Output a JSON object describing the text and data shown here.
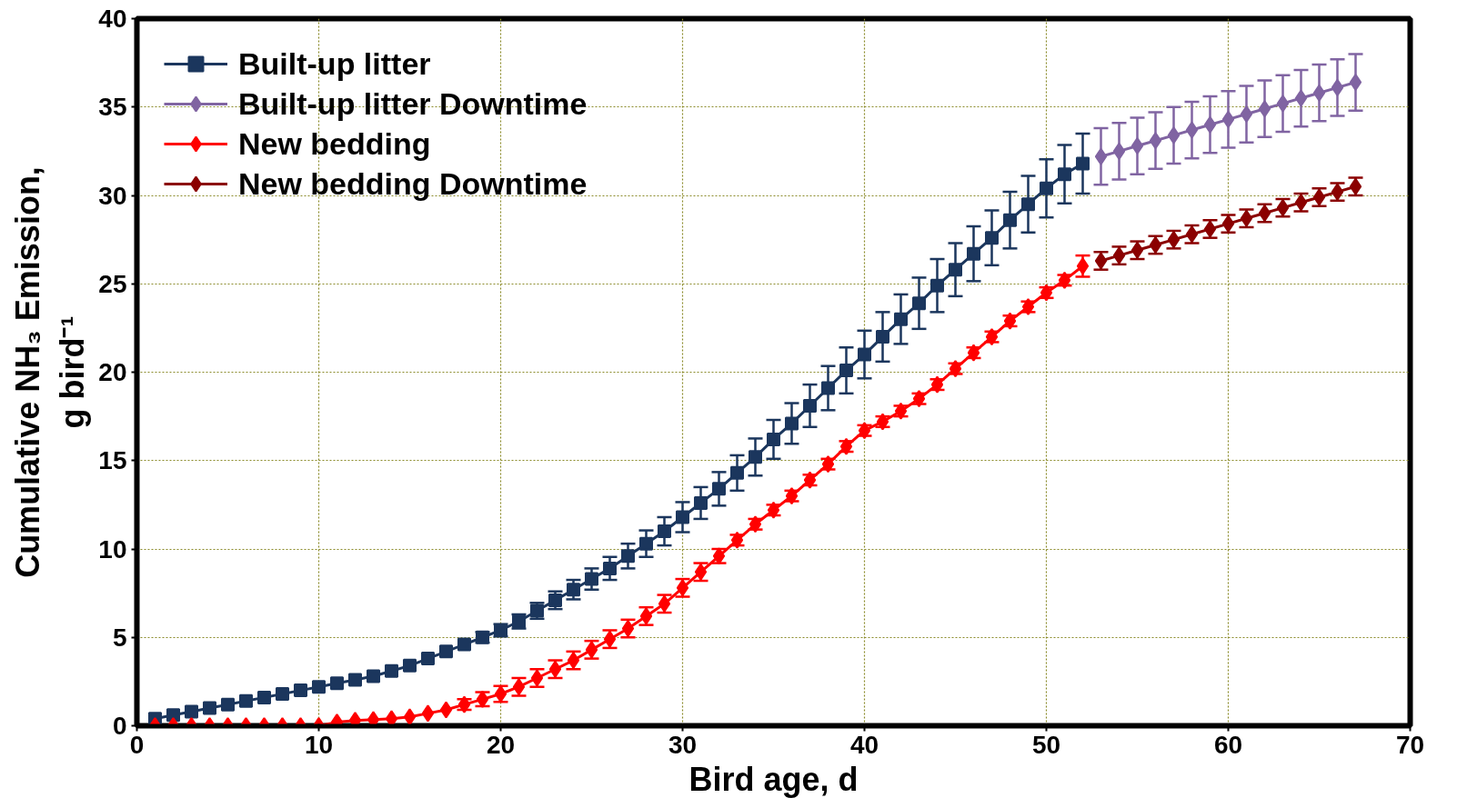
{
  "chart_data": {
    "type": "line",
    "xlabel": "Bird age, d",
    "ylabel": "Cumulative NH₃ Emission,\ng bird⁻¹",
    "xlim": [
      0,
      70
    ],
    "xticks": [
      0,
      10,
      20,
      30,
      40,
      50,
      60,
      70
    ],
    "ylim": [
      0,
      40
    ],
    "yticks": [
      0,
      5,
      10,
      15,
      20,
      25,
      30,
      35,
      40
    ],
    "grid": true,
    "legend": "top left",
    "line_style": "solid",
    "series": [
      {
        "name": "Built-up litter",
        "color": "#1b365d",
        "marker": "square",
        "x": [
          1,
          2,
          3,
          4,
          5,
          6,
          7,
          8,
          9,
          10,
          11,
          12,
          13,
          14,
          15,
          16,
          17,
          18,
          19,
          20,
          21,
          22,
          23,
          24,
          25,
          26,
          27,
          28,
          29,
          30,
          31,
          32,
          33,
          34,
          35,
          36,
          37,
          38,
          39,
          40,
          41,
          42,
          43,
          44,
          45,
          46,
          47,
          48,
          49,
          50,
          51,
          52
        ],
        "values": [
          0.4,
          0.6,
          0.8,
          1.0,
          1.2,
          1.4,
          1.6,
          1.8,
          2.0,
          2.2,
          2.4,
          2.6,
          2.8,
          3.1,
          3.4,
          3.8,
          4.2,
          4.6,
          5.0,
          5.4,
          5.9,
          6.5,
          7.1,
          7.7,
          8.3,
          8.9,
          9.6,
          10.3,
          11.0,
          11.8,
          12.6,
          13.4,
          14.3,
          15.2,
          16.2,
          17.1,
          18.1,
          19.1,
          20.1,
          21.0,
          22.0,
          23.0,
          23.9,
          24.9,
          25.8,
          26.7,
          27.6,
          28.6,
          29.5,
          30.4,
          31.2,
          31.8
        ],
        "errors": [
          null,
          null,
          null,
          null,
          null,
          null,
          null,
          null,
          null,
          null,
          null,
          null,
          null,
          null,
          null,
          null,
          null,
          null,
          0.3,
          0.35,
          0.4,
          0.45,
          0.5,
          0.55,
          0.6,
          0.65,
          0.7,
          0.75,
          0.8,
          0.85,
          0.9,
          0.95,
          1.0,
          1.05,
          1.1,
          1.15,
          1.2,
          1.25,
          1.3,
          1.35,
          1.4,
          1.4,
          1.45,
          1.5,
          1.5,
          1.55,
          1.55,
          1.6,
          1.6,
          1.65,
          1.65,
          1.7
        ]
      },
      {
        "name": "Built-up litter Downtime",
        "color": "#8064a2",
        "marker": "diamond",
        "x": [
          53,
          54,
          55,
          56,
          57,
          58,
          59,
          60,
          61,
          62,
          63,
          64,
          65,
          66,
          67
        ],
        "values": [
          32.2,
          32.5,
          32.8,
          33.1,
          33.4,
          33.7,
          34.0,
          34.3,
          34.6,
          34.9,
          35.2,
          35.5,
          35.8,
          36.1,
          36.4
        ],
        "errors": [
          1.6,
          1.6,
          1.6,
          1.6,
          1.6,
          1.6,
          1.6,
          1.6,
          1.6,
          1.6,
          1.6,
          1.6,
          1.6,
          1.6,
          1.6
        ]
      },
      {
        "name": "New bedding",
        "color": "#ff0000",
        "marker": "diamond",
        "x": [
          1,
          2,
          3,
          4,
          5,
          6,
          7,
          8,
          9,
          10,
          11,
          12,
          13,
          14,
          15,
          16,
          17,
          18,
          19,
          20,
          21,
          22,
          23,
          24,
          25,
          26,
          27,
          28,
          29,
          30,
          31,
          32,
          33,
          34,
          35,
          36,
          37,
          38,
          39,
          40,
          41,
          42,
          43,
          44,
          45,
          46,
          47,
          48,
          49,
          50,
          51,
          52
        ],
        "values": [
          0.0,
          0.0,
          0.0,
          0.0,
          0.0,
          0.0,
          0.0,
          0.0,
          0.0,
          0.0,
          0.2,
          0.3,
          0.35,
          0.4,
          0.5,
          0.7,
          0.9,
          1.2,
          1.5,
          1.8,
          2.2,
          2.7,
          3.2,
          3.7,
          4.3,
          4.9,
          5.5,
          6.2,
          6.9,
          7.8,
          8.7,
          9.6,
          10.5,
          11.4,
          12.2,
          13.0,
          13.9,
          14.8,
          15.8,
          16.7,
          17.2,
          17.8,
          18.5,
          19.3,
          20.2,
          21.1,
          22.0,
          22.9,
          23.7,
          24.5,
          25.2,
          26.0
        ],
        "errors": [
          null,
          null,
          null,
          null,
          null,
          null,
          null,
          null,
          null,
          null,
          null,
          null,
          null,
          null,
          null,
          null,
          null,
          0.3,
          0.4,
          0.45,
          0.5,
          0.5,
          0.5,
          0.5,
          0.5,
          0.5,
          0.5,
          0.5,
          0.5,
          0.5,
          0.5,
          0.4,
          0.3,
          0.3,
          0.3,
          0.3,
          0.3,
          0.3,
          0.3,
          0.3,
          0.3,
          0.3,
          0.3,
          0.3,
          0.3,
          0.3,
          0.3,
          0.3,
          0.3,
          0.3,
          0.3,
          0.6
        ]
      },
      {
        "name": "New bedding Downtime",
        "color": "#8b0000",
        "marker": "diamond",
        "x": [
          53,
          54,
          55,
          56,
          57,
          58,
          59,
          60,
          61,
          62,
          63,
          64,
          65,
          66,
          67
        ],
        "values": [
          26.3,
          26.6,
          26.9,
          27.2,
          27.5,
          27.8,
          28.1,
          28.4,
          28.7,
          29.0,
          29.3,
          29.6,
          29.9,
          30.2,
          30.5
        ],
        "errors": [
          0.5,
          0.5,
          0.5,
          0.5,
          0.5,
          0.5,
          0.5,
          0.5,
          0.5,
          0.5,
          0.5,
          0.5,
          0.5,
          0.5,
          0.5
        ]
      }
    ]
  }
}
